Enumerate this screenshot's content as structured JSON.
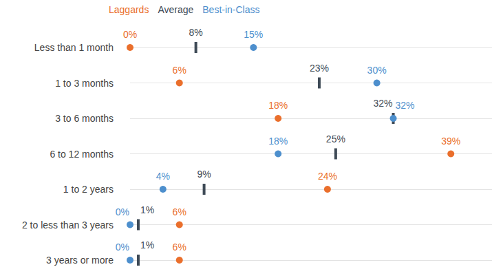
{
  "chart_data": {
    "type": "scatter",
    "orientation": "horizontal",
    "categories": [
      "Less than 1 month",
      "1 to 3 months",
      "3 to 6 months",
      "6 to 12 months",
      "1 to 2 years",
      "2 to less than 3 years",
      "3 years or more"
    ],
    "series": [
      {
        "name": "Laggards",
        "color": "#ea6f2c",
        "marker": "circle",
        "values": [
          0,
          6,
          18,
          39,
          24,
          6,
          6
        ],
        "value_labels": [
          "0%",
          "6%",
          "18%",
          "39%",
          "24%",
          "6%",
          "6%"
        ]
      },
      {
        "name": "Average",
        "color": "#3e4a56",
        "marker": "vline",
        "values": [
          8,
          23,
          32,
          25,
          9,
          1,
          1
        ],
        "value_labels": [
          "8%",
          "23%",
          "32%",
          "25%",
          "9%",
          "1%",
          "1%"
        ]
      },
      {
        "name": "Best-in-Class",
        "color": "#4d8fcd",
        "marker": "circle",
        "values": [
          15,
          30,
          32,
          18,
          4,
          0,
          0
        ],
        "value_labels": [
          "15%",
          "30%",
          "32%",
          "18%",
          "4%",
          "0%",
          "0%"
        ]
      }
    ],
    "xlim": [
      0,
      44
    ],
    "grid": true,
    "legend": "top-left",
    "data_labels": true,
    "tick_labels": "y"
  }
}
